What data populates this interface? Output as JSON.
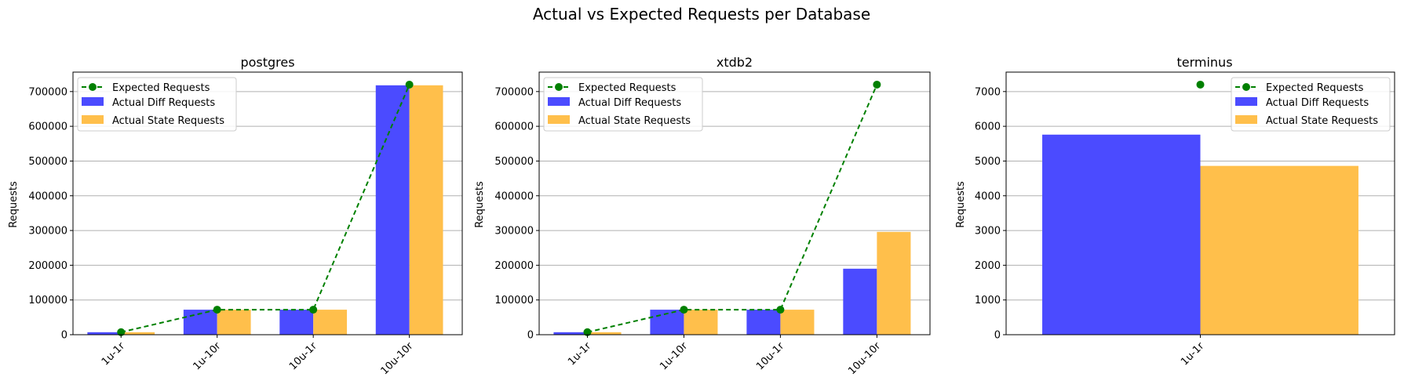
{
  "suptitle": "Actual vs Expected Requests per Database",
  "colors": {
    "diff": "#4b4bff",
    "state": "#ffbf4b",
    "expected": "#008000",
    "grid": "#b0b0b0"
  },
  "chart_data": [
    {
      "type": "bar",
      "title": "postgres",
      "xlabel": "",
      "ylabel": "Requests",
      "categories": [
        "1u-1r",
        "1u-10r",
        "10u-1r",
        "10u-10r"
      ],
      "ylim": [
        0,
        756000
      ],
      "yticks": [
        0,
        100000,
        200000,
        300000,
        400000,
        500000,
        600000,
        700000
      ],
      "grid": "y",
      "legend": "upper-left",
      "series": [
        {
          "name": "Expected Requests",
          "kind": "line",
          "values": [
            7200,
            72000,
            72000,
            720000
          ]
        },
        {
          "name": "Actual Diff Requests",
          "kind": "bar",
          "values": [
            7200,
            72000,
            72000,
            718000
          ]
        },
        {
          "name": "Actual State Requests",
          "kind": "bar",
          "values": [
            7200,
            72000,
            72000,
            718000
          ]
        }
      ]
    },
    {
      "type": "bar",
      "title": "xtdb2",
      "xlabel": "",
      "ylabel": "Requests",
      "categories": [
        "1u-1r",
        "1u-10r",
        "10u-1r",
        "10u-10r"
      ],
      "ylim": [
        0,
        756000
      ],
      "yticks": [
        0,
        100000,
        200000,
        300000,
        400000,
        500000,
        600000,
        700000
      ],
      "grid": "y",
      "legend": "upper-left",
      "series": [
        {
          "name": "Expected Requests",
          "kind": "line",
          "values": [
            7200,
            72000,
            72000,
            720000
          ]
        },
        {
          "name": "Actual Diff Requests",
          "kind": "bar",
          "values": [
            7200,
            72000,
            72000,
            190000
          ]
        },
        {
          "name": "Actual State Requests",
          "kind": "bar",
          "values": [
            7200,
            72000,
            72000,
            296000
          ]
        }
      ]
    },
    {
      "type": "bar",
      "title": "terminus",
      "xlabel": "",
      "ylabel": "Requests",
      "categories": [
        "1u-1r"
      ],
      "ylim": [
        0,
        7560
      ],
      "yticks": [
        0,
        1000,
        2000,
        3000,
        4000,
        5000,
        6000,
        7000
      ],
      "grid": "y",
      "legend": "upper-right",
      "series": [
        {
          "name": "Expected Requests",
          "kind": "line",
          "values": [
            7200
          ]
        },
        {
          "name": "Actual Diff Requests",
          "kind": "bar",
          "values": [
            5760
          ]
        },
        {
          "name": "Actual State Requests",
          "kind": "bar",
          "values": [
            4860
          ]
        }
      ]
    }
  ]
}
